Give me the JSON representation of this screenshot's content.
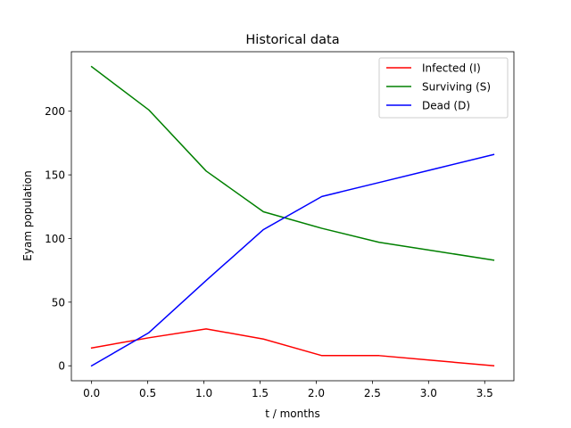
{
  "chart_data": {
    "type": "line",
    "title": "Historical data",
    "xlabel": "t / months",
    "ylabel": "Eyam population",
    "xlim": [
      -0.18,
      3.76
    ],
    "ylim": [
      -11.75,
      246.75
    ],
    "xticks": [
      0.0,
      0.5,
      1.0,
      1.5,
      2.0,
      2.5,
      3.0,
      3.5
    ],
    "xtick_labels": [
      "0.0",
      "0.5",
      "1.0",
      "1.5",
      "2.0",
      "2.5",
      "3.0",
      "3.5"
    ],
    "yticks": [
      0,
      50,
      100,
      150,
      200
    ],
    "ytick_labels": [
      "0",
      "50",
      "100",
      "150",
      "200"
    ],
    "grid": false,
    "legend_position": "top-right",
    "x": [
      0.0,
      0.51,
      1.02,
      1.53,
      2.05,
      2.56,
      3.07,
      3.58
    ],
    "series": [
      {
        "name": "Infected (I)",
        "color": "#ff0000",
        "values": [
          14,
          22,
          29,
          21,
          8,
          8,
          4,
          0
        ]
      },
      {
        "name": "Surviving (S)",
        "color": "#008000",
        "values": [
          235,
          201,
          153,
          121,
          108,
          97,
          90,
          83
        ]
      },
      {
        "name": "Dead (D)",
        "color": "#0000ff",
        "values": [
          0,
          26,
          67,
          107,
          133,
          144,
          155,
          166
        ]
      }
    ]
  }
}
